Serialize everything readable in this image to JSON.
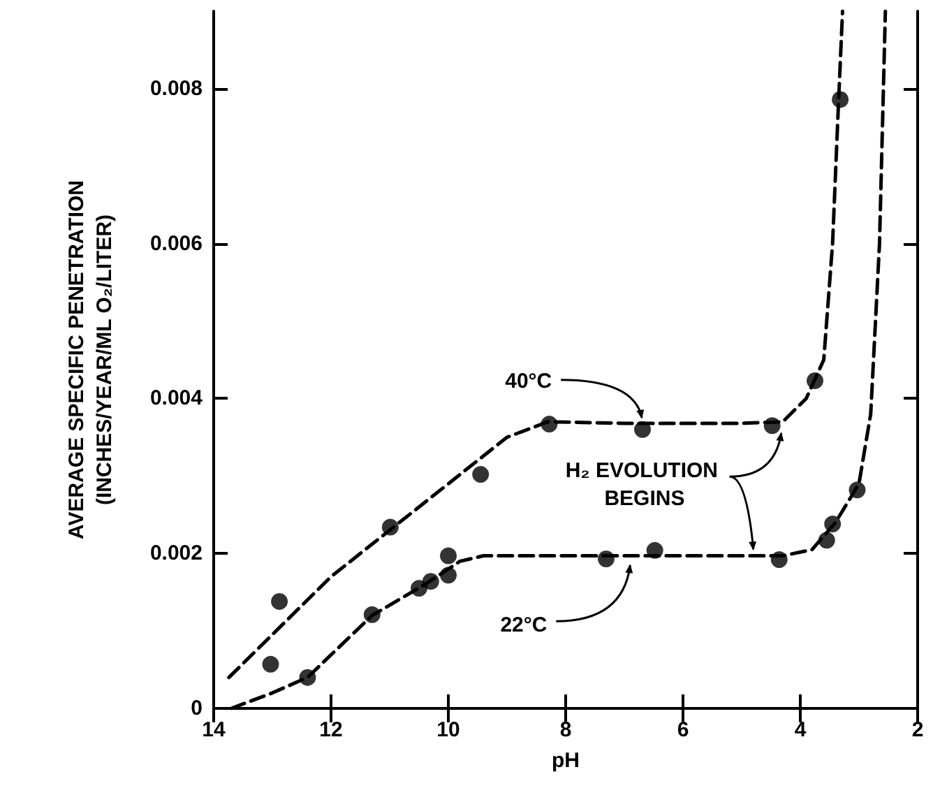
{
  "chart_data": {
    "type": "scatter",
    "xlabel": "pH",
    "ylabel": "AVERAGE SPECIFIC PENETRATION\n(INCHES/YEAR/ML O₂/LITER)",
    "xlim": [
      14,
      2
    ],
    "xticks": [
      14,
      12,
      10,
      8,
      6,
      4,
      2
    ],
    "ylim": [
      0,
      0.009
    ],
    "yticks": [
      0,
      0.002,
      0.004,
      0.006,
      0.008
    ],
    "grid": false,
    "marker": "circle",
    "series": [
      {
        "color": "#000000",
        "x": [
          12.88,
          10.99,
          9.45,
          8.28,
          6.69,
          4.48,
          3.75,
          3.32
        ],
        "values": [
          0.00138,
          0.00234,
          0.00302,
          0.00367,
          0.0036,
          0.00365,
          0.00423,
          0.00786
        ]
      },
      {
        "color": "#000000",
        "x": [
          13.03,
          12.4,
          11.3,
          10.5,
          10.3,
          10.0,
          10.0,
          7.31,
          6.48,
          4.36,
          3.55,
          3.45,
          3.03
        ],
        "values": [
          0.00057,
          0.0004,
          0.00121,
          0.00155,
          0.00164,
          0.00172,
          0.00197,
          0.00193,
          0.00204,
          0.00192,
          0.00217,
          0.00238,
          0.00282
        ]
      },
      {
        "type": "line",
        "color": "#000000",
        "line_style": "dashed",
        "marker": "none",
        "x": [
          13.74,
          12,
          10,
          9,
          8.3,
          7,
          5,
          4.3,
          3.9,
          3.6,
          3.45,
          3.35,
          3.28
        ],
        "values": [
          0.0004,
          0.0017,
          0.0029,
          0.0035,
          0.0037,
          0.00368,
          0.00368,
          0.0037,
          0.004,
          0.0045,
          0.006,
          0.0078,
          0.009
        ]
      },
      {
        "type": "line",
        "color": "#000000",
        "line_style": "dashed",
        "marker": "none",
        "x": [
          13.7,
          13,
          12.4,
          11.3,
          10.4,
          9.8,
          9.4,
          7,
          5,
          4.3,
          3.8,
          3.4,
          3.0,
          2.8,
          2.65,
          2.55
        ],
        "values": [
          0,
          0.0002,
          0.0004,
          0.0012,
          0.0016,
          0.0019,
          0.00197,
          0.00197,
          0.00197,
          0.00197,
          0.00205,
          0.0024,
          0.0029,
          0.0038,
          0.006,
          0.009
        ]
      }
    ],
    "annotations": [
      {
        "text": "40°C",
        "x": 6.7,
        "y": 0.0037
      },
      {
        "text": "22°C",
        "x": 6.9,
        "y": 0.0019
      },
      {
        "text": "H₂ EVOLUTION BEGINS",
        "x": 4.8,
        "y": 0.002
      }
    ]
  }
}
